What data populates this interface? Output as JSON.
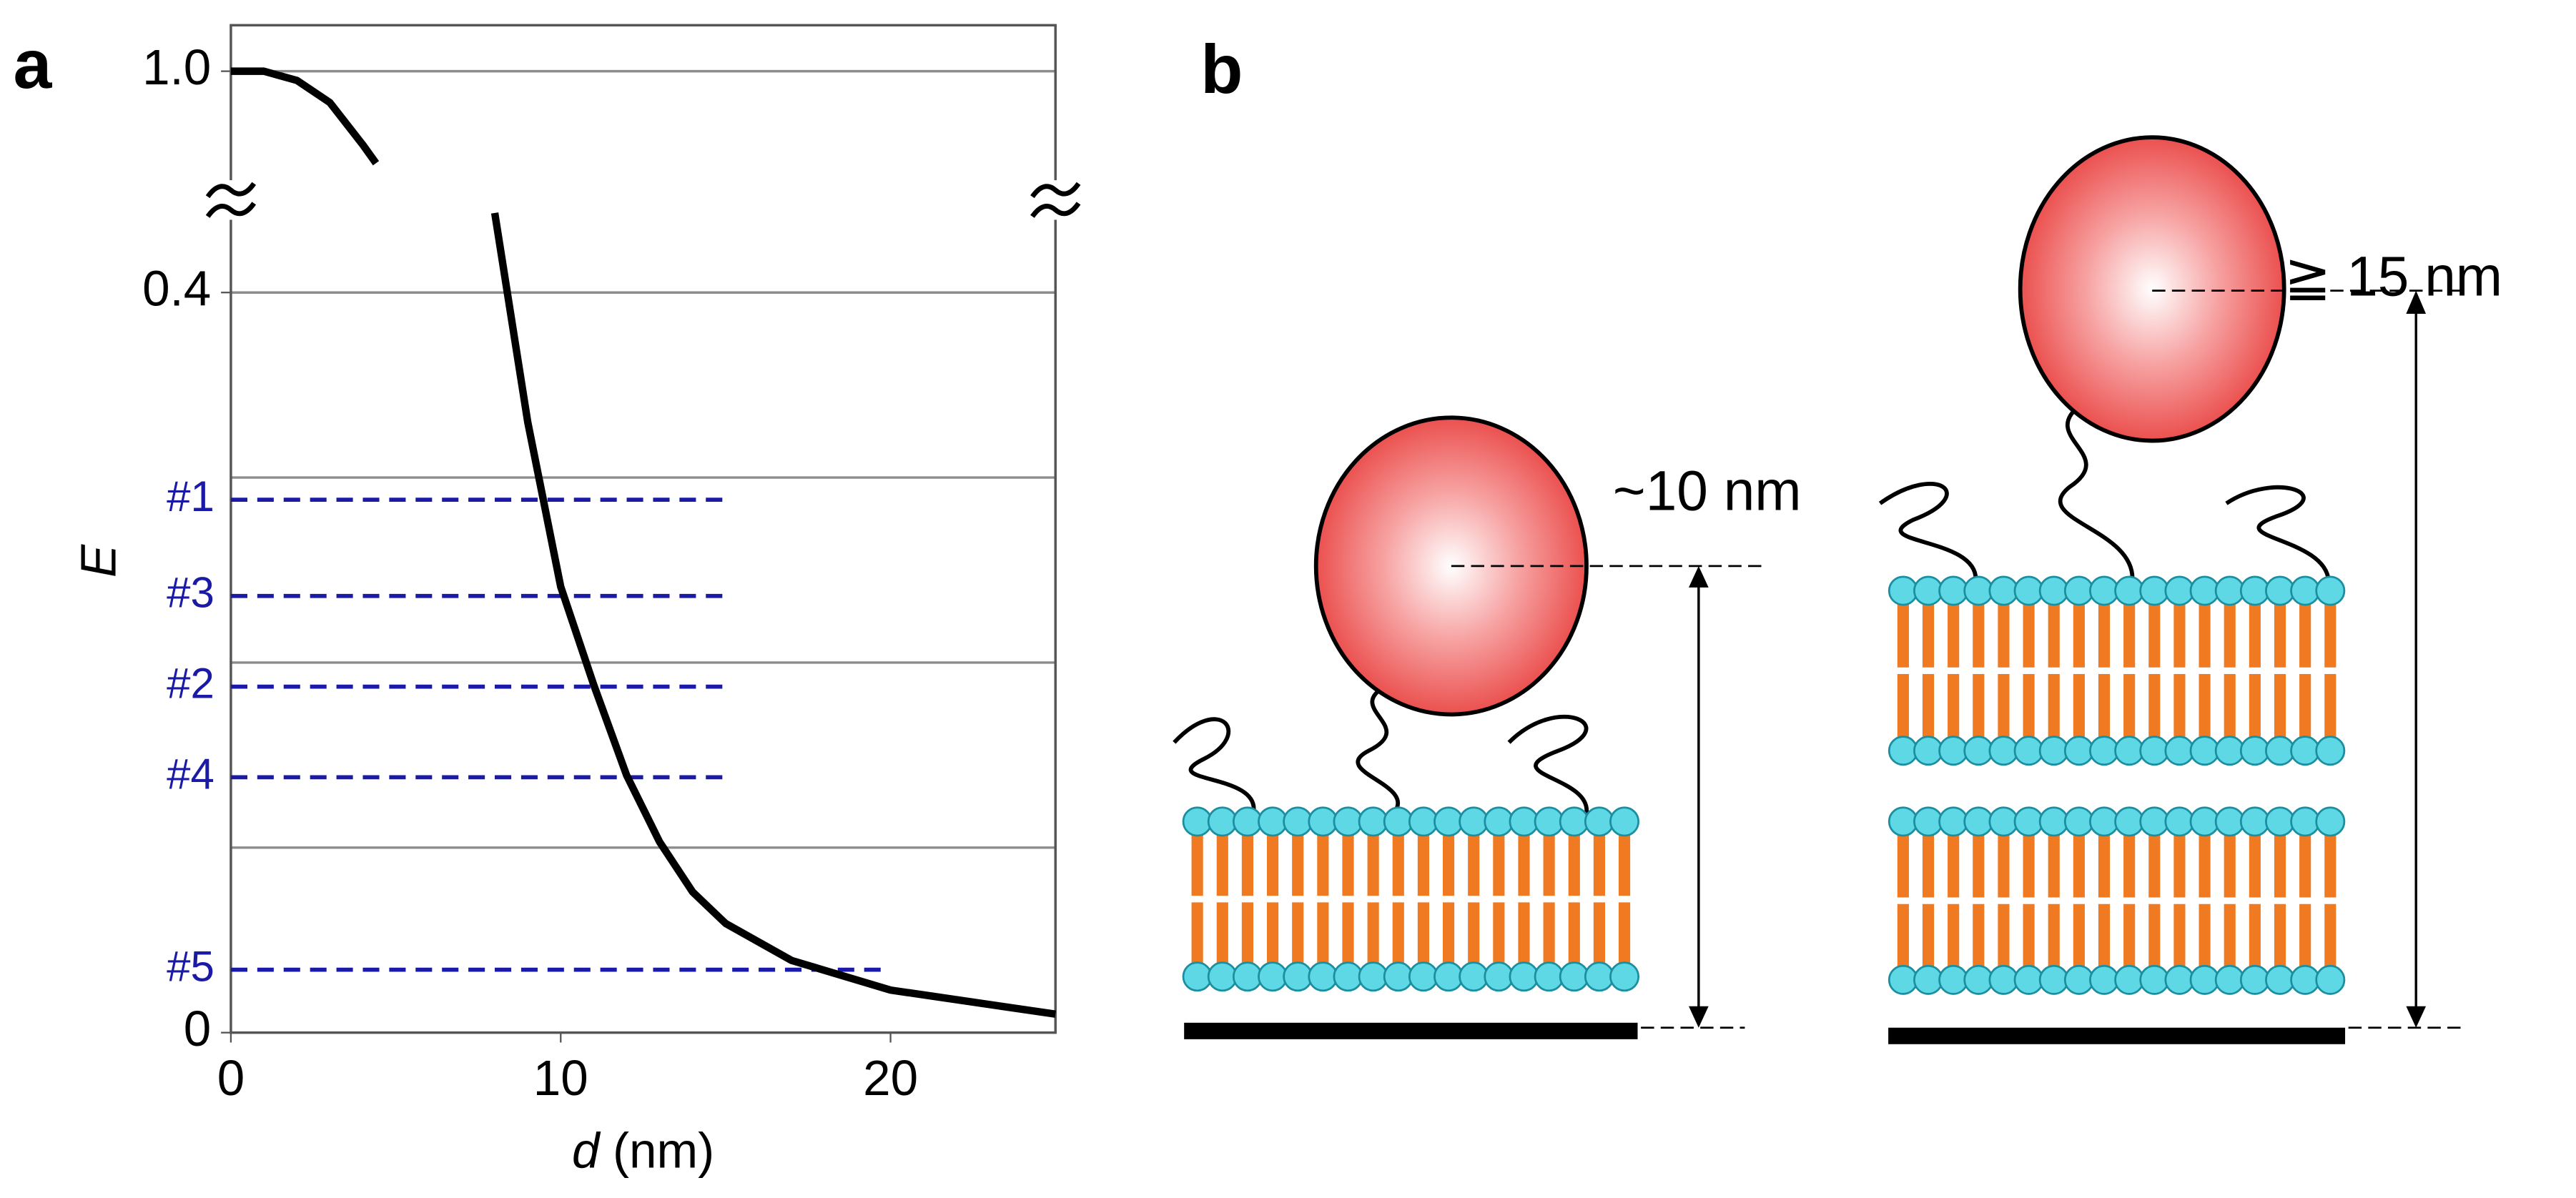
{
  "panels": [
    "a",
    "b"
  ],
  "chart_data": {
    "type": "line",
    "ylabel": "E",
    "xlabel": {
      "var": "d",
      "unit": "(nm)"
    },
    "x": [
      0,
      1,
      2,
      3,
      4,
      4.4,
      6,
      8,
      9,
      10,
      11,
      12,
      13,
      14,
      15,
      17,
      20,
      25
    ],
    "values": [
      1.0,
      1.0,
      0.995,
      0.983,
      0.96,
      0.95,
      null,
      0.443,
      0.33,
      0.241,
      0.188,
      0.139,
      0.103,
      0.076,
      0.059,
      0.039,
      0.023,
      0.01
    ],
    "color": "#000000",
    "xlim": [
      0,
      25
    ],
    "xticks": [
      0,
      10,
      20
    ],
    "ylim": [
      0,
      1.025
    ],
    "ybreak": [
      0.45,
      0.93
    ],
    "yticks": [
      0,
      0.4,
      {
        "value": 1,
        "label": "1.0"
      }
    ],
    "ygrid": [
      0.1,
      0.2,
      0.3,
      0.4,
      1.0
    ],
    "levels": [
      {
        "label": "#1",
        "value": 0.288,
        "xmax": 15
      },
      {
        "label": "#3",
        "value": 0.236,
        "xmax": 15
      },
      {
        "label": "#2",
        "value": 0.187,
        "xmax": 15
      },
      {
        "label": "#4",
        "value": 0.138,
        "xmax": 15
      },
      {
        "label": "#5",
        "value": 0.034,
        "xmax": 20
      }
    ],
    "level_color": "#1a1aa6"
  },
  "diagram": {
    "left_label": "~10 nm",
    "right_label": "≧ 15 nm"
  }
}
